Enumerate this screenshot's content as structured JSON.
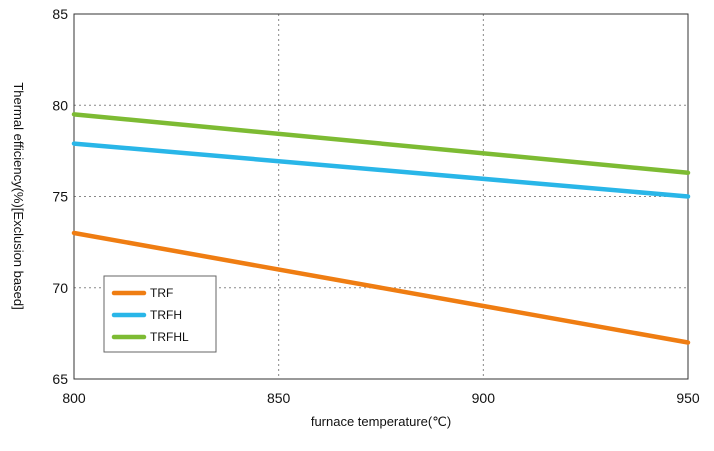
{
  "chart_data": {
    "type": "line",
    "title": "",
    "xlabel": "furnace temperature(℃)",
    "ylabel": "Thermal efficiency(%)[Exclusion based]",
    "x": [
      800,
      950
    ],
    "xticks": [
      "800",
      "850",
      "900",
      "950"
    ],
    "yticks": [
      "65",
      "70",
      "75",
      "80",
      "85"
    ],
    "xlim": [
      800,
      950
    ],
    "ylim": [
      65,
      85
    ],
    "grid": true,
    "legend_position": "bottom-left",
    "series": [
      {
        "name": "TRF",
        "color": "#ef7d12",
        "values": [
          73.0,
          67.0
        ]
      },
      {
        "name": "TRFH",
        "color": "#29b6e8",
        "values": [
          77.9,
          75.0
        ]
      },
      {
        "name": "TRFHL",
        "color": "#7dbb33",
        "values": [
          79.5,
          76.3
        ]
      }
    ]
  }
}
